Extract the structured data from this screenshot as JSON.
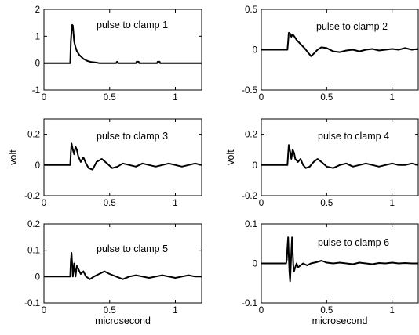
{
  "chart_data": [
    {
      "type": "line",
      "title": "",
      "annotation": "pulse to clamp 1",
      "xlabel": "",
      "ylabel": "",
      "xlim": [
        0,
        1.2
      ],
      "ylim": [
        -1,
        2
      ],
      "xticks": [
        0,
        0.5,
        1
      ],
      "xtick_labels": [
        "0",
        "0.5",
        "1"
      ],
      "yticks": [
        -1,
        0,
        1,
        2
      ],
      "ytick_labels": [
        "-1",
        "0",
        "1",
        "2"
      ],
      "x": [
        0,
        0.2,
        0.205,
        0.21,
        0.215,
        0.22,
        0.225,
        0.23,
        0.24,
        0.25,
        0.27,
        0.3,
        0.33,
        0.36,
        0.4,
        0.42,
        0.5,
        0.55,
        0.555,
        0.56,
        0.565,
        0.7,
        0.705,
        0.72,
        0.725,
        0.86,
        0.865,
        0.88,
        0.885,
        1.2
      ],
      "y": [
        0,
        0,
        0.8,
        1.2,
        1.42,
        1.4,
        1.1,
        0.8,
        0.6,
        0.45,
        0.3,
        0.16,
        0.08,
        0.04,
        0.02,
        0,
        0,
        0,
        0.05,
        0.05,
        0,
        0,
        0.05,
        0.05,
        0,
        0,
        0.05,
        0.05,
        0,
        0
      ]
    },
    {
      "type": "line",
      "title": "",
      "annotation": "pulse to clamp 2",
      "xlabel": "",
      "ylabel": "",
      "xlim": [
        0,
        1.2
      ],
      "ylim": [
        -0.5,
        0.5
      ],
      "xticks": [
        0,
        0.5,
        1
      ],
      "xtick_labels": [
        "0",
        "0.5",
        "1"
      ],
      "yticks": [
        -0.5,
        0,
        0.5
      ],
      "ytick_labels": [
        "-0.5",
        "0",
        "0.5"
      ],
      "x": [
        0,
        0.2,
        0.205,
        0.21,
        0.22,
        0.23,
        0.24,
        0.25,
        0.27,
        0.3,
        0.33,
        0.36,
        0.38,
        0.4,
        0.43,
        0.46,
        0.5,
        0.55,
        0.6,
        0.65,
        0.7,
        0.75,
        0.8,
        0.85,
        0.9,
        0.95,
        1.0,
        1.05,
        1.1,
        1.15,
        1.2
      ],
      "y": [
        0,
        0,
        0.1,
        0.21,
        0.2,
        0.16,
        0.19,
        0.17,
        0.12,
        0.07,
        0.02,
        -0.04,
        -0.08,
        -0.05,
        0.0,
        0.03,
        0.02,
        -0.02,
        -0.03,
        -0.01,
        0.0,
        -0.02,
        0.0,
        0.01,
        -0.01,
        0.0,
        0.01,
        0.0,
        0.02,
        0.0,
        0.01
      ]
    },
    {
      "type": "line",
      "title": "",
      "annotation": "pulse to clamp 3",
      "xlabel": "",
      "ylabel": "volt",
      "xlim": [
        0,
        1.2
      ],
      "ylim": [
        -0.2,
        0.3
      ],
      "xticks": [
        0,
        0.5,
        1
      ],
      "xtick_labels": [
        "0",
        "0.5",
        "1"
      ],
      "yticks": [
        -0.2,
        0,
        0.2
      ],
      "ytick_labels": [
        "-0.2",
        "0",
        "0.2"
      ],
      "x": [
        0,
        0.2,
        0.205,
        0.21,
        0.22,
        0.23,
        0.24,
        0.25,
        0.26,
        0.28,
        0.3,
        0.32,
        0.34,
        0.37,
        0.4,
        0.44,
        0.48,
        0.52,
        0.56,
        0.6,
        0.65,
        0.7,
        0.75,
        0.8,
        0.85,
        0.9,
        0.95,
        1.0,
        1.05,
        1.1,
        1.15,
        1.2
      ],
      "y": [
        0,
        0,
        0.08,
        0.14,
        0.1,
        0.07,
        0.12,
        0.1,
        0.06,
        0.02,
        0.05,
        0.01,
        -0.02,
        -0.03,
        0.02,
        0.04,
        0.01,
        -0.02,
        -0.01,
        0.01,
        0.0,
        -0.01,
        0.01,
        0.0,
        -0.01,
        0.0,
        0.01,
        0.0,
        -0.01,
        0.0,
        0.01,
        0.0
      ]
    },
    {
      "type": "line",
      "title": "",
      "annotation": "pulse to clamp 4",
      "xlabel": "",
      "ylabel": "volt",
      "xlim": [
        0,
        1.2
      ],
      "ylim": [
        -0.2,
        0.3
      ],
      "xticks": [
        0,
        0.5,
        1
      ],
      "xtick_labels": [
        "0",
        "0.5",
        "1"
      ],
      "yticks": [
        -0.2,
        0,
        0.2
      ],
      "ytick_labels": [
        "-0.2",
        "0",
        "0.2"
      ],
      "x": [
        0,
        0.2,
        0.205,
        0.21,
        0.22,
        0.23,
        0.24,
        0.25,
        0.26,
        0.28,
        0.3,
        0.32,
        0.34,
        0.37,
        0.4,
        0.43,
        0.46,
        0.5,
        0.55,
        0.6,
        0.65,
        0.7,
        0.75,
        0.8,
        0.85,
        0.9,
        0.95,
        1.0,
        1.05,
        1.1,
        1.15,
        1.2
      ],
      "y": [
        0,
        0,
        0.07,
        0.13,
        0.09,
        0.04,
        0.1,
        0.08,
        0.04,
        0.02,
        0.04,
        0.0,
        -0.02,
        -0.01,
        0.02,
        0.04,
        0.02,
        -0.01,
        -0.02,
        0.0,
        0.01,
        -0.01,
        0.0,
        0.01,
        0.0,
        -0.01,
        0.0,
        0.01,
        0.0,
        0.0,
        0.01,
        0.0
      ]
    },
    {
      "type": "line",
      "title": "",
      "annotation": "pulse to clamp 5",
      "xlabel": "microsecond",
      "ylabel": "",
      "xlim": [
        0,
        1.2
      ],
      "ylim": [
        -0.1,
        0.2
      ],
      "xticks": [
        0,
        0.5,
        1
      ],
      "xtick_labels": [
        "0",
        "0.5",
        "1"
      ],
      "yticks": [
        -0.1,
        0,
        0.1,
        0.2
      ],
      "ytick_labels": [
        "-0.1",
        "0",
        "0.1",
        "0.2"
      ],
      "x": [
        0,
        0.2,
        0.205,
        0.21,
        0.22,
        0.225,
        0.23,
        0.24,
        0.25,
        0.26,
        0.28,
        0.3,
        0.32,
        0.35,
        0.38,
        0.42,
        0.46,
        0.5,
        0.55,
        0.6,
        0.65,
        0.7,
        0.75,
        0.8,
        0.85,
        0.9,
        0.95,
        1.0,
        1.05,
        1.1,
        1.15,
        1.2
      ],
      "y": [
        0,
        0,
        0.06,
        0.09,
        0.0,
        0.03,
        0.05,
        0.0,
        0.04,
        0.03,
        0.01,
        0.02,
        0.0,
        -0.01,
        0.0,
        0.01,
        0.02,
        0.01,
        0.0,
        -0.01,
        0.0,
        0.005,
        0.0,
        -0.005,
        0.0,
        0.005,
        0.0,
        -0.005,
        0.0,
        0.005,
        0.0,
        0.0
      ]
    },
    {
      "type": "line",
      "title": "",
      "annotation": "pulse to clamp 6",
      "xlabel": "microsecond",
      "ylabel": "",
      "xlim": [
        0,
        1.2
      ],
      "ylim": [
        -0.1,
        0.1
      ],
      "xticks": [
        0,
        0.5,
        1
      ],
      "xtick_labels": [
        "0",
        "0.5",
        "1"
      ],
      "yticks": [
        -0.1,
        0,
        0.1
      ],
      "ytick_labels": [
        "-0.1",
        "0",
        "0.1"
      ],
      "x": [
        0,
        0.19,
        0.195,
        0.2,
        0.205,
        0.21,
        0.215,
        0.22,
        0.225,
        0.23,
        0.235,
        0.24,
        0.245,
        0.25,
        0.26,
        0.27,
        0.28,
        0.3,
        0.32,
        0.35,
        0.38,
        0.42,
        0.46,
        0.5,
        0.55,
        0.6,
        0.65,
        0.7,
        0.75,
        0.8,
        0.85,
        0.9,
        0.95,
        1.0,
        1.05,
        1.1,
        1.15,
        1.2
      ],
      "y": [
        0,
        0,
        0.01,
        0.04,
        0.066,
        0.02,
        -0.02,
        -0.045,
        -0.01,
        0.03,
        0.066,
        0.03,
        -0.005,
        -0.02,
        -0.01,
        0.0,
        -0.01,
        -0.005,
        0.0,
        -0.005,
        0.0,
        0.003,
        0.007,
        0.002,
        0.0,
        0.002,
        0.0,
        -0.002,
        0.002,
        0.0,
        -0.002,
        0.001,
        0.0,
        0.002,
        0.0,
        0.001,
        0.0,
        0.0
      ]
    }
  ]
}
